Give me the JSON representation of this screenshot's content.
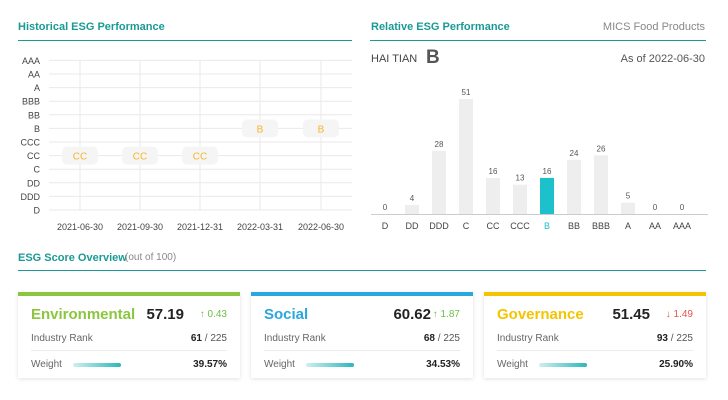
{
  "historical": {
    "title": "Historical ESG Performance",
    "chart_data": {
      "type": "scatter",
      "title": "Historical ESG Performance",
      "y_categories": [
        "D",
        "DDD",
        "DD",
        "C",
        "CC",
        "CCC",
        "B",
        "BB",
        "BBB",
        "A",
        "AA",
        "AAA"
      ],
      "x": [
        "2021-06-30",
        "2021-09-30",
        "2021-12-31",
        "2022-03-31",
        "2022-06-30"
      ],
      "ratings": [
        "CC",
        "CC",
        "CC",
        "B",
        "B"
      ],
      "grid": true
    }
  },
  "relative": {
    "title": "Relative ESG Performance",
    "industry": "MICS Food Products",
    "company": "HAI TIAN",
    "company_rating": "B",
    "as_of": "As of 2022-06-30",
    "chart_data": {
      "type": "bar",
      "categories": [
        "D",
        "DD",
        "DDD",
        "C",
        "CC",
        "CCC",
        "B",
        "BB",
        "BBB",
        "A",
        "AA",
        "AAA"
      ],
      "values": [
        0,
        4,
        28,
        51,
        16,
        13,
        16,
        24,
        26,
        5,
        0,
        0
      ],
      "highlight": "B",
      "highlight_color": "#1cc1cc",
      "bar_color": "#eeeeee"
    }
  },
  "overview": {
    "title": "ESG Score Overview",
    "subtitle": "(out of 100)",
    "rank_label": "Industry Rank",
    "weight_label": "Weight",
    "cards": [
      {
        "name": "Environmental",
        "score": "57.19",
        "delta": "0.43",
        "direction": "up",
        "rank": "61",
        "total": "225",
        "weight": "39.57%",
        "color": "#8cc63f"
      },
      {
        "name": "Social",
        "score": "60.62",
        "delta": "1.87",
        "direction": "up",
        "rank": "68",
        "total": "225",
        "weight": "34.53%",
        "color": "#29a8e0"
      },
      {
        "name": "Governance",
        "score": "51.45",
        "delta": "1.49",
        "direction": "down",
        "rank": "93",
        "total": "225",
        "weight": "25.90%",
        "color": "#f5c400"
      }
    ],
    "up_color": "#6cbf47",
    "down_color": "#e8544e"
  }
}
